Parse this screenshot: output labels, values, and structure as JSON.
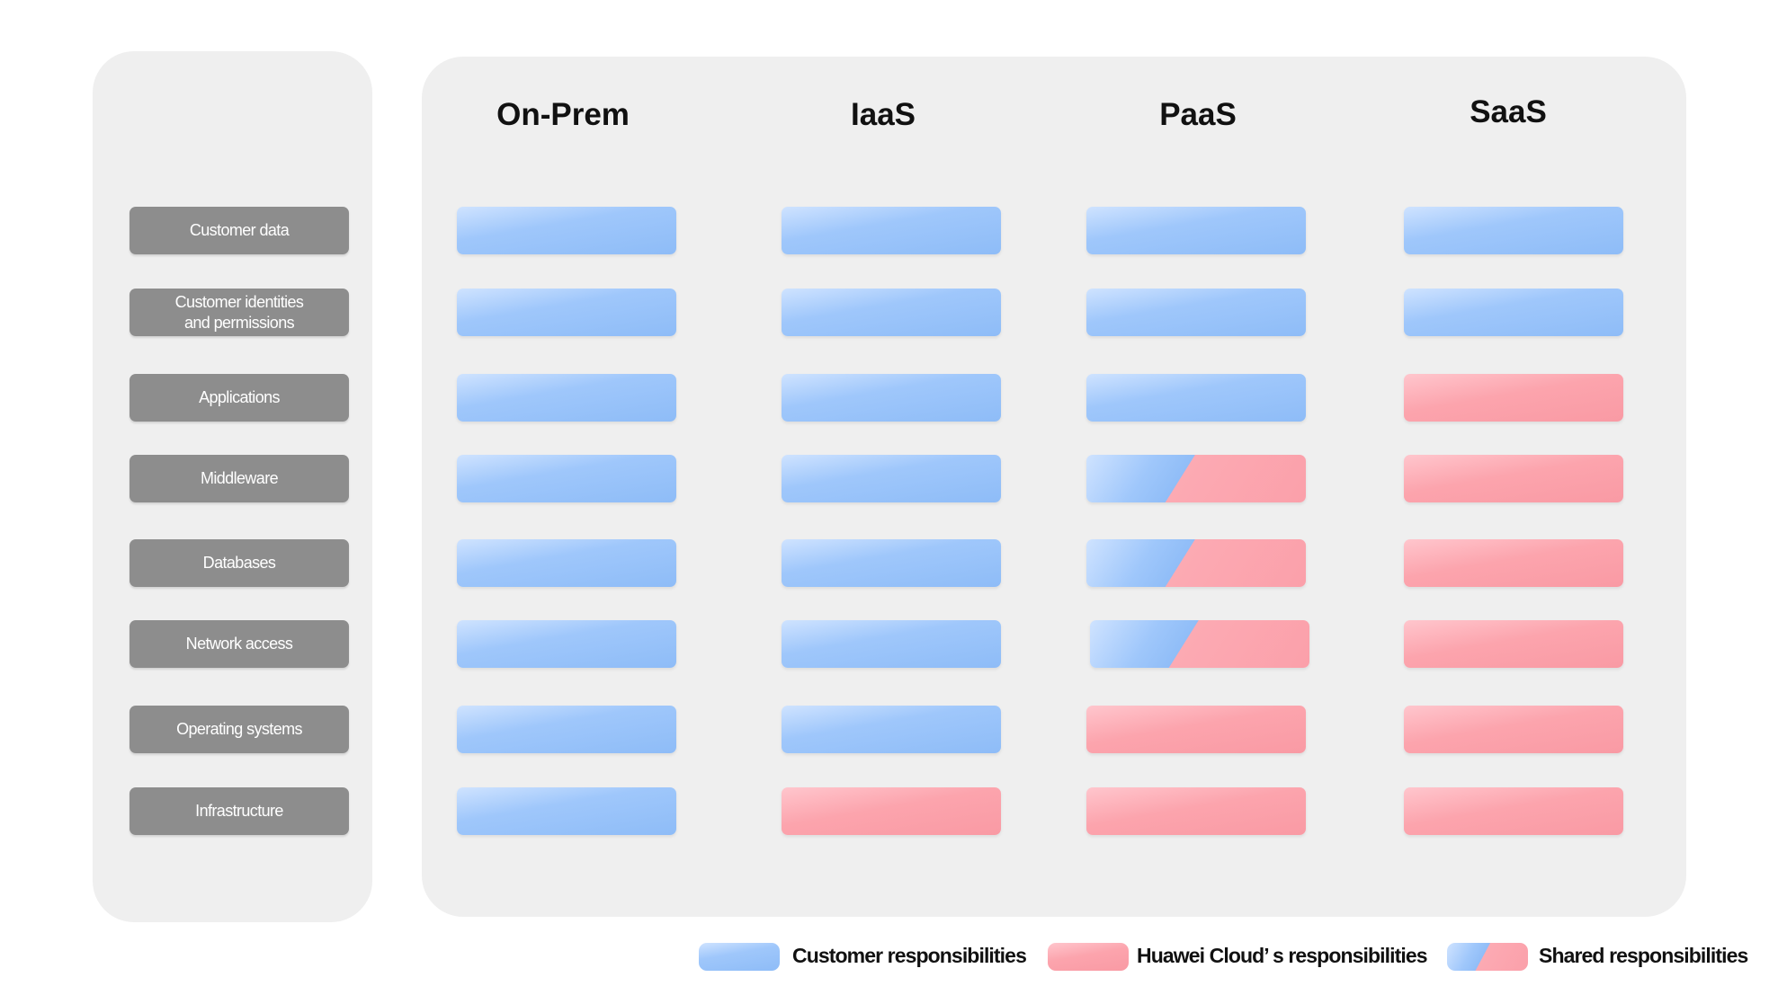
{
  "columns": [
    "On-Prem",
    "IaaS",
    "PaaS",
    "SaaS"
  ],
  "rows": [
    "Customer data",
    "Customer identities\nand permissions",
    "Applications",
    "Middleware",
    "Databases",
    "Network access",
    "Operating systems",
    "Infrastructure"
  ],
  "matrix": [
    [
      "customer",
      "customer",
      "customer",
      "customer"
    ],
    [
      "customer",
      "customer",
      "customer",
      "customer"
    ],
    [
      "customer",
      "customer",
      "customer",
      "huawei"
    ],
    [
      "customer",
      "customer",
      "shared",
      "huawei"
    ],
    [
      "customer",
      "customer",
      "shared",
      "huawei"
    ],
    [
      "customer",
      "customer",
      "shared",
      "huawei"
    ],
    [
      "customer",
      "customer",
      "huawei",
      "huawei"
    ],
    [
      "customer",
      "huawei",
      "huawei",
      "huawei"
    ]
  ],
  "legend": {
    "customer": "Customer responsibilities",
    "huawei": "Huawei Cloud’ s responsibilities",
    "shared": "Shared responsibilities"
  },
  "colors": {
    "customer": "#8ebcf7",
    "huawei": "#f99aa4",
    "label_bg": "#8d8d8d",
    "panel_bg": "#efefef"
  }
}
